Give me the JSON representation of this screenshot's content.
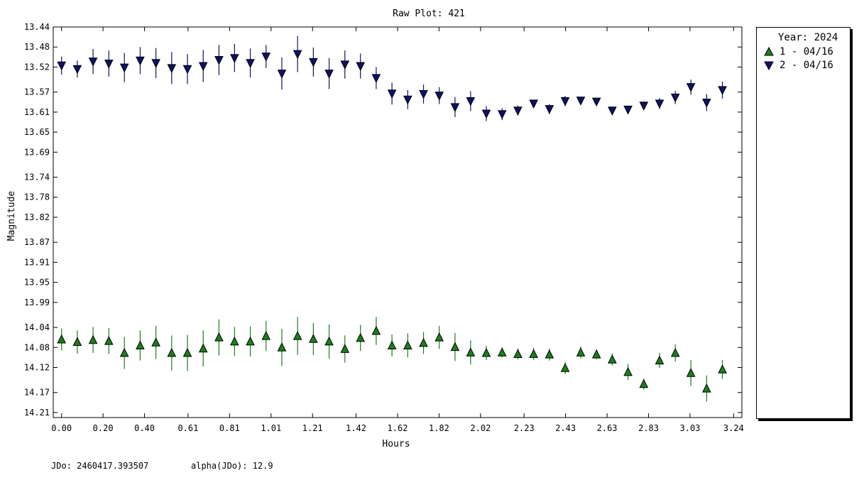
{
  "chart_data": {
    "type": "scatter",
    "title": "Raw Plot: 421",
    "xlabel": "Hours",
    "ylabel": "Magnitude",
    "xlim": [
      -0.04,
      3.28
    ],
    "ylim": [
      13.44,
      14.22
    ],
    "y_inverted": true,
    "grid": false,
    "legend_position": "right",
    "x_ticks": [
      "0.00",
      "0.20",
      "0.40",
      "0.61",
      "0.81",
      "1.01",
      "1.21",
      "1.42",
      "1.62",
      "1.82",
      "2.02",
      "2.23",
      "2.43",
      "2.63",
      "2.83",
      "3.03",
      "3.24"
    ],
    "y_ticks": [
      "13.44",
      "13.48",
      "13.52",
      "13.57",
      "13.61",
      "13.65",
      "13.69",
      "13.74",
      "13.78",
      "13.82",
      "13.87",
      "13.91",
      "13.95",
      "13.99",
      "14.04",
      "14.08",
      "14.12",
      "14.17",
      "14.21"
    ],
    "series": [
      {
        "name": "1 - 04/16",
        "marker": "triangle-up",
        "color": "#1a7f1a",
        "x": [
          0.0,
          0.076,
          0.152,
          0.228,
          0.303,
          0.379,
          0.455,
          0.531,
          0.607,
          0.683,
          0.759,
          0.834,
          0.91,
          0.986,
          1.062,
          1.138,
          1.214,
          1.29,
          1.366,
          1.441,
          1.517,
          1.593,
          1.669,
          1.745,
          1.821,
          1.897,
          1.972,
          2.048,
          2.124,
          2.2,
          2.276,
          2.352,
          2.428,
          2.503,
          2.579,
          2.655,
          2.731,
          2.807,
          2.883,
          2.959,
          3.034,
          3.11,
          3.186
        ],
        "y": [
          14.064,
          14.069,
          14.065,
          14.067,
          14.091,
          14.076,
          14.07,
          14.091,
          14.091,
          14.082,
          14.06,
          14.068,
          14.068,
          14.057,
          14.08,
          14.057,
          14.063,
          14.068,
          14.083,
          14.061,
          14.047,
          14.076,
          14.076,
          14.071,
          14.06,
          14.079,
          14.09,
          14.091,
          14.09,
          14.093,
          14.093,
          14.094,
          14.121,
          14.09,
          14.094,
          14.104,
          14.129,
          14.153,
          14.106,
          14.091,
          14.131,
          14.162,
          14.124
        ],
        "err": [
          0.022,
          0.023,
          0.026,
          0.026,
          0.032,
          0.03,
          0.033,
          0.035,
          0.036,
          0.036,
          0.036,
          0.029,
          0.03,
          0.03,
          0.037,
          0.038,
          0.032,
          0.034,
          0.027,
          0.026,
          0.028,
          0.022,
          0.024,
          0.022,
          0.023,
          0.028,
          0.024,
          0.014,
          0.01,
          0.011,
          0.012,
          0.012,
          0.012,
          0.012,
          0.01,
          0.012,
          0.016,
          0.011,
          0.015,
          0.017,
          0.026,
          0.026,
          0.019
        ]
      },
      {
        "name": "2 - 04/16",
        "marker": "triangle-down",
        "color": "#10106b",
        "x": [
          0.0,
          0.076,
          0.152,
          0.228,
          0.303,
          0.379,
          0.455,
          0.531,
          0.607,
          0.683,
          0.759,
          0.834,
          0.91,
          0.986,
          1.062,
          1.138,
          1.214,
          1.29,
          1.366,
          1.441,
          1.517,
          1.593,
          1.669,
          1.745,
          1.821,
          1.897,
          1.972,
          2.048,
          2.124,
          2.2,
          2.276,
          2.352,
          2.428,
          2.503,
          2.579,
          2.655,
          2.731,
          2.807,
          2.883,
          2.959,
          3.034,
          3.11,
          3.186
        ],
        "y": [
          13.517,
          13.524,
          13.509,
          13.513,
          13.521,
          13.507,
          13.512,
          13.522,
          13.524,
          13.518,
          13.506,
          13.502,
          13.512,
          13.499,
          13.533,
          13.494,
          13.51,
          13.533,
          13.515,
          13.518,
          13.542,
          13.573,
          13.585,
          13.574,
          13.577,
          13.6,
          13.588,
          13.613,
          13.614,
          13.607,
          13.593,
          13.604,
          13.588,
          13.587,
          13.589,
          13.607,
          13.605,
          13.597,
          13.593,
          13.581,
          13.56,
          13.591,
          13.566
        ],
        "err": [
          0.018,
          0.017,
          0.025,
          0.026,
          0.029,
          0.027,
          0.03,
          0.032,
          0.03,
          0.032,
          0.03,
          0.028,
          0.029,
          0.023,
          0.032,
          0.036,
          0.029,
          0.031,
          0.028,
          0.025,
          0.022,
          0.022,
          0.019,
          0.019,
          0.017,
          0.02,
          0.02,
          0.015,
          0.012,
          0.01,
          0.008,
          0.01,
          0.01,
          0.008,
          0.007,
          0.008,
          0.007,
          0.008,
          0.011,
          0.013,
          0.015,
          0.017,
          0.017
        ]
      }
    ]
  },
  "legend": {
    "title": "Year: 2024",
    "items": [
      {
        "label": "1 - 04/16",
        "marker": "triangle-up",
        "color": "#1a7f1a"
      },
      {
        "label": "2 - 04/16",
        "marker": "triangle-down",
        "color": "#10106b"
      }
    ]
  },
  "footer": {
    "jdo": "JDo: 2460417.393507",
    "alpha": "alpha(JDo): 12.9"
  }
}
